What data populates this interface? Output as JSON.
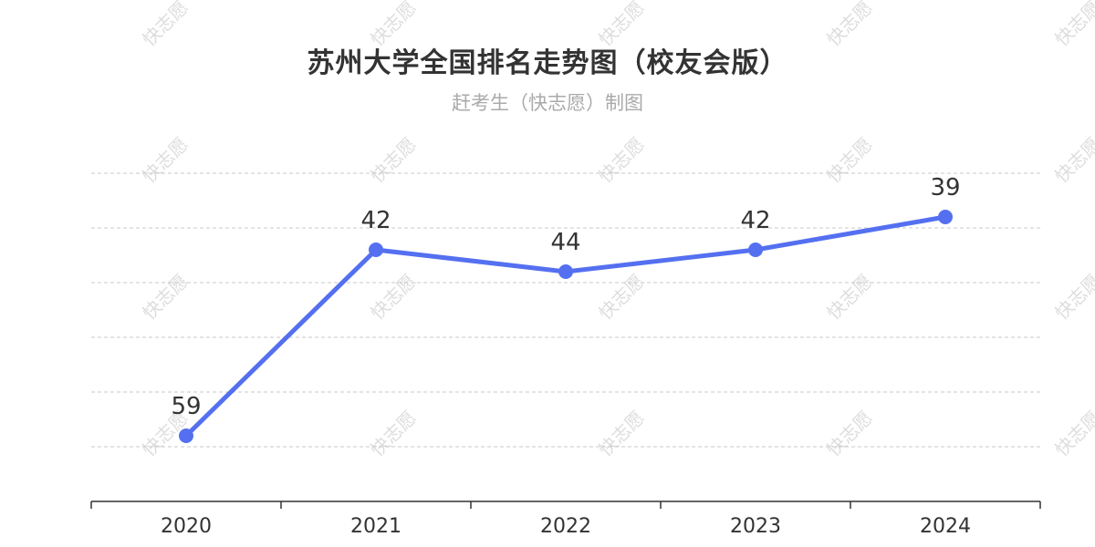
{
  "watermark_text": "快志愿",
  "chart_data": {
    "type": "line",
    "title": "苏州大学全国排名走势图（校友会版）",
    "subtitle": "赶考生（快志愿）制图",
    "categories": [
      "2020",
      "2021",
      "2022",
      "2023",
      "2024"
    ],
    "series": [
      {
        "values": [
          59,
          42,
          44,
          42,
          39
        ]
      }
    ],
    "data_labels": [
      "59",
      "42",
      "44",
      "42",
      "39"
    ],
    "y_inverted": true,
    "ylim": [
      35,
      65
    ],
    "grid": true,
    "line_color": "#5470f0",
    "grid_color": "#c8c8c8",
    "axis_color": "#333333",
    "label_color": "#333333"
  }
}
